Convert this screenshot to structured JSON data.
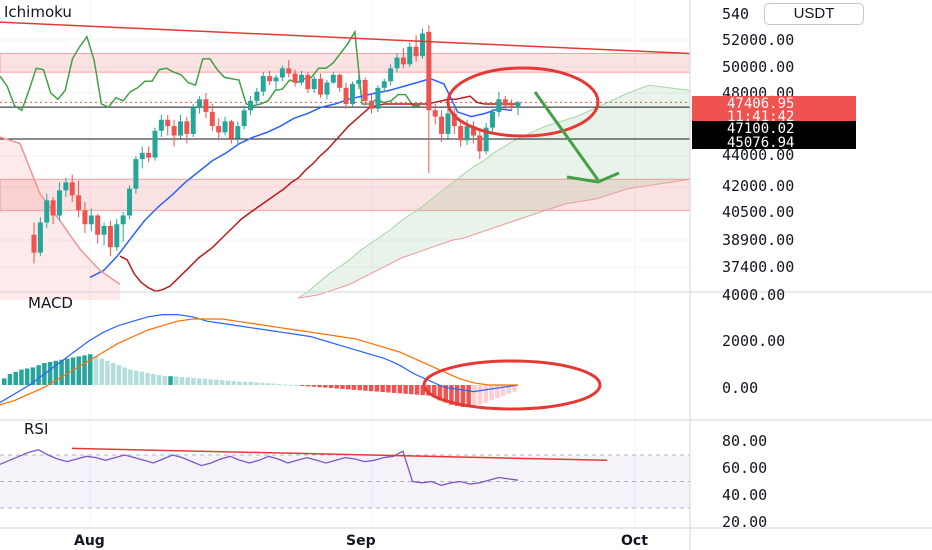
{
  "chart_data": {
    "type": "candlestick",
    "symbol_quote": "USDT",
    "time_axis": {
      "ticks": [
        "Aug",
        "Sep",
        "Oct"
      ]
    },
    "panes": [
      {
        "name": "Ichimoku",
        "price_axis_ticks": [
          "540",
          "52000.00",
          "50000.00",
          "48000.00",
          "44000.00",
          "42000.00",
          "40500.00",
          "38900.00",
          "37400.00"
        ],
        "price_tags": [
          {
            "id": "last",
            "text": "47406.95",
            "color": "#ef5350"
          },
          {
            "id": "countdown",
            "text": "11:41:42",
            "color": "#ef5350"
          },
          {
            "id": "level_a",
            "text": "47100.02",
            "color": "#000000"
          },
          {
            "id": "level_b",
            "text": "45076.94",
            "color": "#000000"
          }
        ],
        "horizontal_levels": [
          47100.02,
          45076.94
        ],
        "resistance_zones": [
          {
            "from": 49600,
            "to": 51000
          },
          {
            "from": 40600,
            "to": 42500
          }
        ],
        "candles_ohlc": [
          [
            39200,
            39900,
            37600,
            38200
          ],
          [
            38200,
            40200,
            38000,
            39900
          ],
          [
            39900,
            41600,
            39600,
            41200
          ],
          [
            41200,
            41400,
            39800,
            40300
          ],
          [
            40300,
            42300,
            40000,
            41800
          ],
          [
            41800,
            42600,
            41400,
            42300
          ],
          [
            42300,
            42800,
            41100,
            41500
          ],
          [
            41500,
            42400,
            40200,
            40600
          ],
          [
            40600,
            41100,
            39300,
            39800
          ],
          [
            39800,
            40700,
            39400,
            40300
          ],
          [
            40300,
            40400,
            38700,
            39200
          ],
          [
            39200,
            39900,
            38600,
            39700
          ],
          [
            39700,
            40000,
            38000,
            38500
          ],
          [
            38500,
            40100,
            38300,
            39800
          ],
          [
            39800,
            40500,
            38800,
            40300
          ],
          [
            40300,
            42100,
            40100,
            41900
          ],
          [
            41900,
            44000,
            41600,
            43800
          ],
          [
            43800,
            44600,
            43200,
            44200
          ],
          [
            44200,
            44600,
            43600,
            43900
          ],
          [
            43900,
            45800,
            43700,
            45600
          ],
          [
            45600,
            46600,
            45200,
            46300
          ],
          [
            46300,
            46600,
            45300,
            45900
          ],
          [
            45900,
            46300,
            44600,
            45300
          ],
          [
            45300,
            46600,
            45100,
            46200
          ],
          [
            46200,
            46500,
            44800,
            45400
          ],
          [
            45400,
            47300,
            45200,
            47100
          ],
          [
            47100,
            47800,
            46700,
            47600
          ],
          [
            47600,
            48000,
            46400,
            46800
          ],
          [
            46800,
            47300,
            45600,
            45900
          ],
          [
            45900,
            46400,
            45000,
            45500
          ],
          [
            45500,
            46500,
            45300,
            46200
          ],
          [
            46200,
            46300,
            44800,
            45100
          ],
          [
            45100,
            46200,
            44700,
            45900
          ],
          [
            45900,
            47200,
            45700,
            46900
          ],
          [
            46900,
            47800,
            46600,
            47500
          ],
          [
            47500,
            48400,
            47200,
            48100
          ],
          [
            48100,
            49600,
            47800,
            49300
          ],
          [
            49300,
            49700,
            48600,
            48900
          ],
          [
            48900,
            49400,
            48200,
            49200
          ],
          [
            49200,
            50100,
            48900,
            49900
          ],
          [
            49900,
            50500,
            49200,
            49500
          ],
          [
            49500,
            49800,
            48500,
            48800
          ],
          [
            48800,
            49700,
            48600,
            49400
          ],
          [
            49400,
            49600,
            48000,
            48300
          ],
          [
            48300,
            49300,
            48000,
            49100
          ],
          [
            49100,
            49500,
            47700,
            47900
          ],
          [
            47900,
            49000,
            47600,
            48800
          ],
          [
            48800,
            49600,
            48700,
            49400
          ],
          [
            49400,
            49500,
            48100,
            48400
          ],
          [
            48400,
            48800,
            47000,
            47300
          ],
          [
            47300,
            48900,
            47100,
            48700
          ],
          [
            48700,
            49300,
            48300,
            49000
          ],
          [
            49000,
            49200,
            47200,
            47500
          ],
          [
            47500,
            47900,
            46700,
            47000
          ],
          [
            47000,
            48600,
            46800,
            48400
          ],
          [
            48400,
            49100,
            48100,
            48900
          ],
          [
            48900,
            50200,
            48600,
            49900
          ],
          [
            49900,
            51000,
            49600,
            50700
          ],
          [
            50700,
            51400,
            49900,
            50200
          ],
          [
            50200,
            51800,
            50000,
            51500
          ],
          [
            51500,
            52300,
            50400,
            50800
          ],
          [
            50800,
            52700,
            50600,
            52400
          ],
          [
            52500,
            52900,
            42900,
            46900
          ],
          [
            46900,
            47300,
            46000,
            46500
          ],
          [
            46500,
            46900,
            44900,
            45400
          ],
          [
            45400,
            47100,
            45100,
            46700
          ],
          [
            46700,
            47000,
            45400,
            45900
          ],
          [
            45900,
            46100,
            44600,
            45000
          ],
          [
            45000,
            46300,
            44700,
            45900
          ],
          [
            45900,
            46200,
            44800,
            45300
          ],
          [
            45300,
            45600,
            43800,
            44300
          ],
          [
            44300,
            46100,
            44100,
            45800
          ],
          [
            45800,
            47000,
            45500,
            46800
          ],
          [
            46800,
            48100,
            46500,
            47600
          ],
          [
            47600,
            47800,
            46900,
            47200
          ],
          [
            47200,
            47600,
            46900,
            47100
          ],
          [
            47100,
            47500,
            46600,
            47407
          ]
        ],
        "tenkan_points": [
          49300,
          48500,
          47200,
          46900,
          48200,
          49900,
          49800,
          48000,
          47600,
          48200,
          50600,
          51500,
          52200,
          50500,
          47300,
          47100,
          47700,
          47500,
          48100,
          48400,
          48900,
          48900,
          49800,
          49900,
          49600,
          49400,
          48800,
          48600,
          50600,
          50600,
          49800,
          49200,
          49100,
          49000,
          47300,
          47200,
          47300,
          47500,
          48200,
          48300,
          49000,
          48800,
          49100,
          49200,
          49900,
          49900,
          50300,
          51000,
          51700,
          52500,
          47300,
          47300,
          47600,
          47400,
          47500,
          47900,
          47900,
          47200,
          47200
        ],
        "kijun_points": [
          38000,
          37800,
          37000,
          36500,
          36200,
          36000,
          36100,
          36300,
          36700,
          37100,
          37500,
          37900,
          38200,
          38500,
          38900,
          39300,
          39700,
          40100,
          40400,
          40700,
          41000,
          41300,
          41600,
          41900,
          42300,
          42600,
          43100,
          43500,
          44000,
          44400,
          44900,
          45400,
          45900,
          46300,
          46700,
          47100,
          47200,
          47300,
          47300,
          47300,
          47300,
          47300,
          47300,
          47300,
          47400,
          47500,
          47600,
          47600,
          47700,
          47800,
          47400,
          47300,
          47300,
          47300,
          47300,
          47300,
          47300
        ],
        "senkou_a_points": [
          35600,
          36000,
          36500,
          37000,
          37400,
          37800,
          38300,
          38700,
          39100,
          39500,
          40000,
          40400,
          40800,
          41300,
          41800,
          42300,
          42800,
          43300,
          43700,
          44200,
          44600,
          45000,
          45300,
          45600,
          45900,
          46100,
          46300,
          46500,
          46800,
          47100,
          47400,
          47700,
          48000,
          48300,
          48600,
          48500,
          48400,
          48300,
          48200
        ],
        "senkou_b_points": [
          35600,
          35700,
          35800,
          36000,
          36200,
          36400,
          36700,
          37000,
          37300,
          37600,
          37900,
          38100,
          38300,
          38500,
          38700,
          38900,
          39000,
          39200,
          39400,
          39600,
          39800,
          40000,
          40200,
          40400,
          40600,
          40800,
          41000,
          41100,
          41200,
          41300,
          41500,
          41700,
          41900,
          42000,
          42100,
          42200,
          42300,
          42400,
          42500
        ],
        "resistance_trendline": {
          "from": 53100,
          "to": 51000
        }
      },
      {
        "name": "MACD",
        "value_axis_ticks": [
          "4000.00",
          "2000.00",
          "0.00"
        ],
        "macd_line": [
          -800,
          -400,
          0,
          500,
          1000,
          1500,
          2000,
          2400,
          2700,
          2900,
          3100,
          3200,
          3200,
          3100,
          2900,
          2800,
          2700,
          2600,
          2500,
          2400,
          2300,
          2200,
          2000,
          1800,
          1600,
          1400,
          1200,
          900,
          500,
          200,
          -100,
          -200,
          -300,
          -200,
          -100,
          0
        ],
        "signal_line": [
          -900,
          -700,
          -400,
          -100,
          300,
          700,
          1100,
          1500,
          1900,
          2200,
          2500,
          2700,
          2900,
          3000,
          3000,
          3000,
          2900,
          2800,
          2700,
          2600,
          2500,
          2400,
          2300,
          2200,
          2100,
          1900,
          1700,
          1500,
          1200,
          900,
          600,
          300,
          100,
          0,
          0,
          0
        ],
        "histogram": [
          300,
          500,
          600,
          700,
          750,
          800,
          900,
          1000,
          1050,
          1100,
          1150,
          1200,
          1250,
          1300,
          1350,
          1400,
          1300,
          1200,
          1100,
          1000,
          900,
          800,
          700,
          650,
          600,
          550,
          500,
          450,
          400,
          400,
          380,
          360,
          340,
          320,
          300,
          280,
          260,
          240,
          220,
          200,
          180,
          160,
          150,
          140,
          120,
          100,
          80,
          60,
          40,
          20,
          10,
          0,
          -40,
          -60,
          -80,
          -100,
          -120,
          -140,
          -160,
          -180,
          -200,
          -220,
          -240,
          -260,
          -280,
          -300,
          -320,
          -340,
          -360,
          -380,
          -400,
          -420,
          -440,
          -460,
          -480,
          -500,
          -700,
          -800,
          -900,
          -950,
          -1000,
          -1000,
          -950,
          -900,
          -800,
          -700,
          -600,
          -500,
          -400,
          -300
        ]
      },
      {
        "name": "RSI",
        "value_axis_ticks": [
          "80.00",
          "60.00",
          "40.00",
          "20.00"
        ],
        "rsi_line": [
          63,
          66,
          69,
          72,
          74,
          70,
          67,
          65,
          67,
          69,
          68,
          66,
          68,
          70,
          68,
          66,
          64,
          67,
          70,
          68,
          65,
          62,
          64,
          67,
          69,
          66,
          64,
          66,
          69,
          67,
          64,
          66,
          68,
          66,
          64,
          66,
          68,
          67,
          65,
          66,
          68,
          69,
          73,
          50,
          49,
          50,
          47,
          49,
          50,
          48,
          49,
          51,
          53,
          52,
          51
        ],
        "band_upper": 70,
        "band_lower": 30,
        "divergence_line": {
          "from": 75,
          "to": 66
        }
      }
    ],
    "annotations": [
      "circle around last candles",
      "bearish arrow toward cloud",
      "circle on MACD cross",
      "RSI bearish divergence line"
    ],
    "colors": {
      "bull": "#26a69a",
      "bear": "#ef5350",
      "tenkan": "#2962ff",
      "kijun": "#b71c1c",
      "chikou": "#43a047",
      "annotation": "#e53935"
    }
  }
}
